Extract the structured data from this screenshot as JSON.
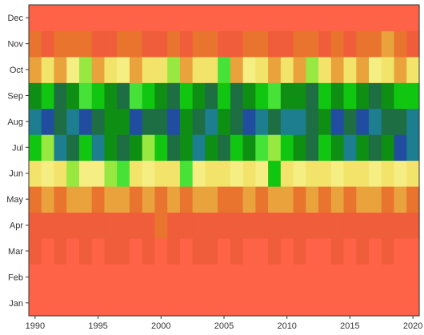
{
  "chart_data": {
    "type": "heatmap",
    "title": "",
    "xlabel": "",
    "ylabel": "",
    "x": [
      1990,
      1991,
      1992,
      1993,
      1994,
      1995,
      1996,
      1997,
      1998,
      1999,
      2000,
      2001,
      2002,
      2003,
      2004,
      2005,
      2006,
      2007,
      2008,
      2009,
      2010,
      2011,
      2012,
      2013,
      2014,
      2015,
      2016,
      2017,
      2018,
      2019,
      2020
    ],
    "x_ticks": [
      "1990",
      "1995",
      "2000",
      "2005",
      "2010",
      "2015",
      "2020"
    ],
    "y": [
      "Jan",
      "Feb",
      "Mar",
      "Apr",
      "May",
      "Jun",
      "Jul",
      "Aug",
      "Sep",
      "Oct",
      "Nov",
      "Dec"
    ],
    "grid": false,
    "legend": "none",
    "palette": [
      "#FF6347",
      "#F05D3B",
      "#E8742E",
      "#E9A23C",
      "#F2E46B",
      "#F4EE83",
      "#97E841",
      "#46E238",
      "#11C611",
      "#0E8F14",
      "#1D6E42",
      "#1C7E8E",
      "#214DA0"
    ],
    "values": [
      [
        0,
        0,
        0,
        0,
        0,
        0,
        0,
        0,
        0,
        0,
        0,
        0,
        0,
        0,
        0,
        0,
        0,
        0,
        0,
        0,
        0,
        0,
        0,
        0,
        0,
        0,
        0,
        0,
        0,
        0,
        0
      ],
      [
        0,
        0,
        0,
        0,
        0,
        0,
        0,
        0,
        0,
        0,
        0,
        0,
        0,
        0,
        0,
        0,
        0,
        0,
        0,
        0,
        0,
        0,
        0,
        0,
        0,
        0,
        0,
        0,
        0,
        0,
        0
      ],
      [
        1,
        0,
        1,
        0,
        1,
        0,
        1,
        1,
        0,
        1,
        0,
        1,
        0,
        1,
        1,
        0,
        1,
        0,
        0,
        1,
        0,
        1,
        0,
        0,
        1,
        0,
        1,
        0,
        1,
        0,
        0
      ],
      [
        1,
        1,
        1,
        1,
        1,
        1,
        1,
        1,
        1,
        1,
        2,
        1,
        1,
        1,
        1,
        1,
        1,
        1,
        1,
        1,
        1,
        1,
        1,
        1,
        1,
        1,
        1,
        1,
        1,
        1,
        1
      ],
      [
        2,
        3,
        2,
        3,
        3,
        2,
        3,
        3,
        2,
        3,
        2,
        3,
        2,
        3,
        3,
        2,
        2,
        3,
        2,
        3,
        3,
        2,
        3,
        2,
        3,
        2,
        3,
        3,
        2,
        3,
        2
      ],
      [
        4,
        5,
        4,
        6,
        5,
        5,
        6,
        7,
        4,
        5,
        4,
        4,
        7,
        5,
        4,
        4,
        5,
        4,
        5,
        8,
        4,
        5,
        4,
        4,
        5,
        4,
        4,
        5,
        4,
        5,
        4
      ],
      [
        8,
        6,
        11,
        10,
        8,
        11,
        9,
        10,
        9,
        6,
        8,
        10,
        9,
        11,
        9,
        10,
        8,
        9,
        7,
        6,
        8,
        9,
        10,
        8,
        9,
        11,
        9,
        10,
        9,
        12,
        11
      ],
      [
        11,
        12,
        10,
        11,
        12,
        10,
        9,
        9,
        12,
        10,
        10,
        12,
        9,
        10,
        11,
        9,
        10,
        12,
        11,
        10,
        11,
        11,
        10,
        9,
        12,
        10,
        12,
        11,
        10,
        10,
        11
      ],
      [
        9,
        8,
        10,
        9,
        7,
        8,
        9,
        10,
        7,
        8,
        9,
        10,
        8,
        9,
        10,
        8,
        10,
        9,
        8,
        7,
        9,
        9,
        10,
        8,
        9,
        8,
        9,
        10,
        9,
        8,
        8
      ],
      [
        3,
        4,
        3,
        5,
        6,
        3,
        4,
        5,
        3,
        4,
        4,
        6,
        3,
        4,
        4,
        7,
        3,
        5,
        4,
        3,
        4,
        3,
        6,
        4,
        3,
        4,
        3,
        5,
        4,
        3,
        4
      ],
      [
        2,
        1,
        2,
        2,
        2,
        1,
        1,
        2,
        2,
        1,
        1,
        2,
        1,
        2,
        2,
        1,
        1,
        2,
        2,
        1,
        1,
        2,
        2,
        1,
        2,
        1,
        2,
        2,
        3,
        2,
        1
      ],
      [
        0,
        0,
        0,
        0,
        0,
        0,
        0,
        0,
        0,
        0,
        0,
        0,
        0,
        0,
        0,
        0,
        0,
        0,
        0,
        0,
        0,
        0,
        0,
        0,
        0,
        0,
        0,
        0,
        0,
        0,
        0
      ]
    ]
  }
}
